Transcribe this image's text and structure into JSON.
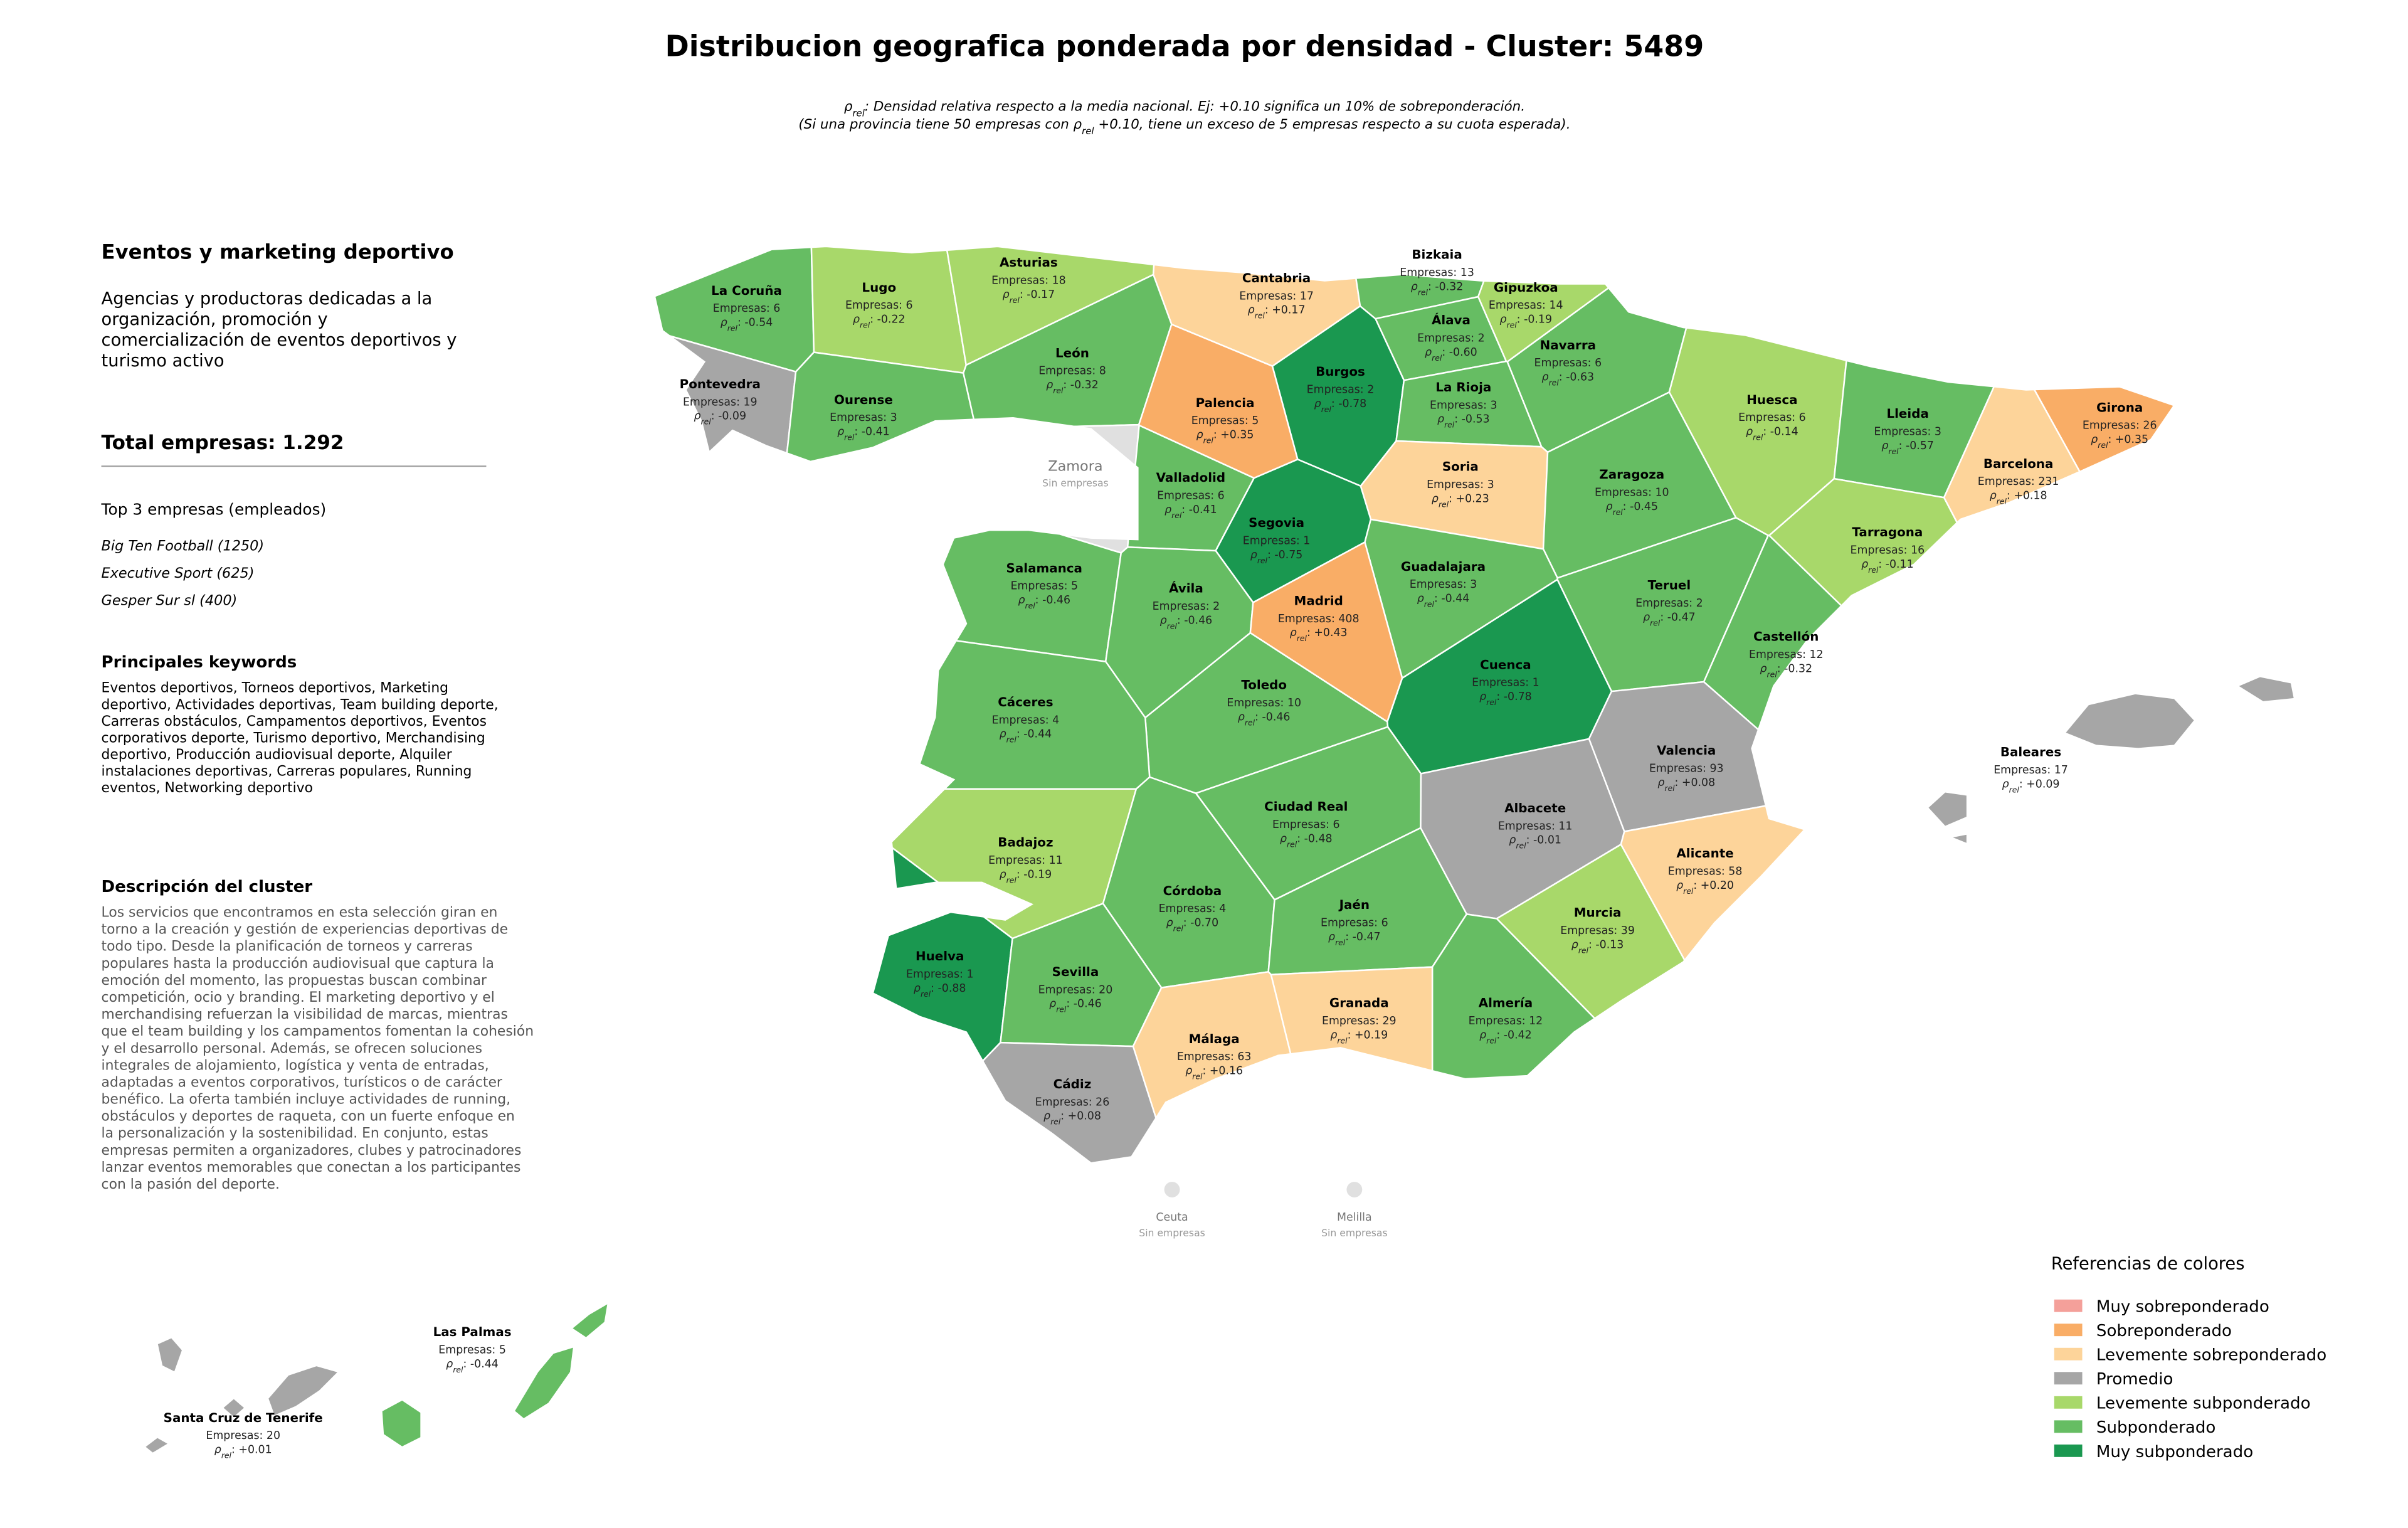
{
  "title": "Distribucion geografica ponderada por densidad - Cluster: 5489",
  "subtitle": [
    [
      {
        "text": "ρ"
      },
      {
        "text": "rel",
        "sub": true
      },
      {
        "text": ": Densidad relativa respecto a la media nacional. Ej: +0.10 significa un 10% de sobreponderación."
      }
    ],
    [
      {
        "text": "(Si una provincia tiene 50 empresas con "
      },
      {
        "text": "ρ"
      },
      {
        "text": "rel",
        "sub": true
      },
      {
        "text": " +0.10, tiene un exceso de 5 empresas respecto a su cuota esperada)."
      }
    ]
  ],
  "panel": {
    "heading": "Eventos y marketing deportivo",
    "summary": [
      "Agencias y productoras dedicadas a la",
      "organización, promoción y",
      "comercialización de eventos deportivos y",
      "turismo activo"
    ],
    "total": "Total empresas: 1.292",
    "top_title": "Top 3 empresas (empleados)",
    "top": [
      "Big Ten Football (1250)",
      "Executive Sport (625)",
      "Gesper Sur sl (400)"
    ],
    "keywords_title": "Principales keywords",
    "keywords": [
      "Eventos deportivos, Torneos deportivos, Marketing",
      "deportivo, Actividades deportivas, Team building deporte,",
      "Carreras obstáculos, Campamentos deportivos, Eventos",
      "corporativos deporte, Turismo deportivo, Merchandising",
      "deportivo, Producción audiovisual deporte, Alquiler",
      "instalaciones deportivas, Carreras populares, Running",
      "eventos, Networking deportivo"
    ],
    "description_title": "Descripción del cluster",
    "description": [
      "Los servicios que encontramos en esta selección giran en",
      "torno a la creación y gestión de experiencias deportivas de",
      "todo tipo. Desde la planificación de torneos y carreras",
      "populares hasta la producción audiovisual que captura la",
      "emoción del momento, las propuestas buscan combinar",
      "competición, ocio y branding. El marketing deportivo y el",
      "merchandising refuerzan la visibilidad de marcas, mientras",
      "que el team building y los campamentos fomentan la cohesión",
      "y el desarrollo personal. Además, se ofrecen soluciones",
      "integrales de alojamiento, logística y venta de entradas,",
      "adaptadas a eventos corporativos, turísticos o de carácter",
      "benéfico. La oferta también incluye actividades de running,",
      "obstáculos y deportes de raqueta, con un fuerte enfoque en",
      "la personalización y la sostenibilidad. En conjunto, estas",
      "empresas permiten a organizadores, clubes y patrocinadores",
      "lanzar eventos memorables que conectan a los participantes",
      "con la pasión del deporte."
    ]
  },
  "count_prefix": "Empresas: ",
  "rho_symbol": "ρ",
  "rho_subscript": "rel",
  "rho_separator": ": ",
  "no_data_color": "#e0e0e0",
  "provinces": [
    {
      "name": "La Coruña",
      "count": "6",
      "rho": "-0.54",
      "category": 5
    },
    {
      "name": "Lugo",
      "count": "6",
      "rho": "-0.22",
      "category": 4
    },
    {
      "name": "Asturias",
      "count": "18",
      "rho": "-0.17",
      "category": 4
    },
    {
      "name": "Cantabria",
      "count": "17",
      "rho": "+0.17",
      "category": 2
    },
    {
      "name": "Bizkaia",
      "count": "13",
      "rho": "-0.32",
      "category": 5
    },
    {
      "name": "Gipuzkoa",
      "count": "14",
      "rho": "-0.19",
      "category": 4
    },
    {
      "name": "Álava",
      "count": "2",
      "rho": "-0.60",
      "category": 5
    },
    {
      "name": "Navarra",
      "count": "6",
      "rho": "-0.63",
      "category": 5
    },
    {
      "name": "Pontevedra",
      "count": "19",
      "rho": "-0.09",
      "category": 3
    },
    {
      "name": "Ourense",
      "count": "3",
      "rho": "-0.41",
      "category": 5
    },
    {
      "name": "León",
      "count": "8",
      "rho": "-0.32",
      "category": 5
    },
    {
      "name": "Palencia",
      "count": "5",
      "rho": "+0.35",
      "category": 1
    },
    {
      "name": "Burgos",
      "count": "2",
      "rho": "-0.78",
      "category": 6
    },
    {
      "name": "La Rioja",
      "count": "3",
      "rho": "-0.53",
      "category": 5
    },
    {
      "name": "Huesca",
      "count": "6",
      "rho": "-0.14",
      "category": 4
    },
    {
      "name": "Lleida",
      "count": "3",
      "rho": "-0.57",
      "category": 5
    },
    {
      "name": "Girona",
      "count": "26",
      "rho": "+0.35",
      "category": 1
    },
    {
      "name": "Barcelona",
      "count": "231",
      "rho": "+0.18",
      "category": 2
    },
    {
      "name": "Zamora",
      "note": "Sin empresas"
    },
    {
      "name": "Soria",
      "count": "3",
      "rho": "+0.23",
      "category": 2
    },
    {
      "name": "Zaragoza",
      "count": "10",
      "rho": "-0.45",
      "category": 5
    },
    {
      "name": "Valladolid",
      "count": "6",
      "rho": "-0.41",
      "category": 5
    },
    {
      "name": "Segovia",
      "count": "1",
      "rho": "-0.75",
      "category": 6
    },
    {
      "name": "Tarragona",
      "count": "16",
      "rho": "-0.11",
      "category": 4
    },
    {
      "name": "Salamanca",
      "count": "5",
      "rho": "-0.46",
      "category": 5
    },
    {
      "name": "Guadalajara",
      "count": "3",
      "rho": "-0.44",
      "category": 5
    },
    {
      "name": "Teruel",
      "count": "2",
      "rho": "-0.47",
      "category": 5
    },
    {
      "name": "Ávila",
      "count": "2",
      "rho": "-0.46",
      "category": 5
    },
    {
      "name": "Madrid",
      "count": "408",
      "rho": "+0.43",
      "category": 1
    },
    {
      "name": "Castellón",
      "count": "12",
      "rho": "-0.32",
      "category": 5
    },
    {
      "name": "Cuenca",
      "count": "1",
      "rho": "-0.78",
      "category": 6
    },
    {
      "name": "Toledo",
      "count": "10",
      "rho": "-0.46",
      "category": 5
    },
    {
      "name": "Cáceres",
      "count": "4",
      "rho": "-0.44",
      "category": 5
    },
    {
      "name": "Valencia",
      "count": "93",
      "rho": "+0.08",
      "category": 3
    },
    {
      "name": "Ciudad Real",
      "count": "6",
      "rho": "-0.48",
      "category": 5
    },
    {
      "name": "Albacete",
      "count": "11",
      "rho": "-0.01",
      "category": 3
    },
    {
      "name": "Badajoz",
      "count": "11",
      "rho": "-0.19",
      "category": 4
    },
    {
      "name": "Alicante",
      "count": "58",
      "rho": "+0.20",
      "category": 2
    },
    {
      "name": "Córdoba",
      "count": "4",
      "rho": "-0.70",
      "category": 5
    },
    {
      "name": "Jaén",
      "count": "6",
      "rho": "-0.47",
      "category": 5
    },
    {
      "name": "Murcia",
      "count": "39",
      "rho": "-0.13",
      "category": 4
    },
    {
      "name": "Huelva",
      "count": "1",
      "rho": "-0.88",
      "category": 6
    },
    {
      "name": "Sevilla",
      "count": "20",
      "rho": "-0.46",
      "category": 5
    },
    {
      "name": "Almería",
      "count": "12",
      "rho": "-0.42",
      "category": 5
    },
    {
      "name": "Granada",
      "count": "29",
      "rho": "+0.19",
      "category": 2
    },
    {
      "name": "Málaga",
      "count": "63",
      "rho": "+0.16",
      "category": 2
    },
    {
      "name": "Cádiz",
      "count": "26",
      "rho": "+0.08",
      "category": 3
    },
    {
      "name": "Baleares",
      "count": "17",
      "rho": "+0.09",
      "category": 3
    },
    {
      "name": "Las Palmas",
      "count": "5",
      "rho": "-0.44",
      "category": 5
    },
    {
      "name": "Santa Cruz de Tenerife",
      "count": "20",
      "rho": "+0.01",
      "category": 3
    },
    {
      "name": "Ceuta",
      "note": "Sin empresas"
    },
    {
      "name": "Melilla",
      "note": "Sin empresas"
    }
  ],
  "legend": {
    "title": "Referencias de colores",
    "entries": [
      {
        "label": "Muy sobreponderado",
        "color": "#f4a09a"
      },
      {
        "label": "Sobreponderado",
        "color": "#f9ad66"
      },
      {
        "label": "Levemente sobreponderado",
        "color": "#fdd49a"
      },
      {
        "label": "Promedio",
        "color": "#a6a6a6"
      },
      {
        "label": "Levemente subponderado",
        "color": "#a8d86a"
      },
      {
        "label": "Subponderado",
        "color": "#66bd63"
      },
      {
        "label": "Muy subponderado",
        "color": "#1a9850"
      }
    ]
  }
}
